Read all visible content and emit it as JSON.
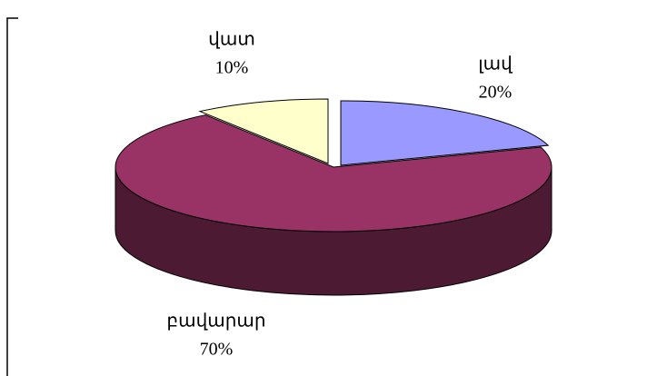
{
  "chart_data": {
    "type": "pie",
    "categories": [
      "լավ",
      "բավարար",
      "վատ"
    ],
    "values": [
      20,
      70,
      10
    ],
    "value_labels": [
      "20%",
      "70%",
      "10%"
    ],
    "colors": [
      "#9999ff",
      "#993366",
      "#ffffcc"
    ]
  }
}
